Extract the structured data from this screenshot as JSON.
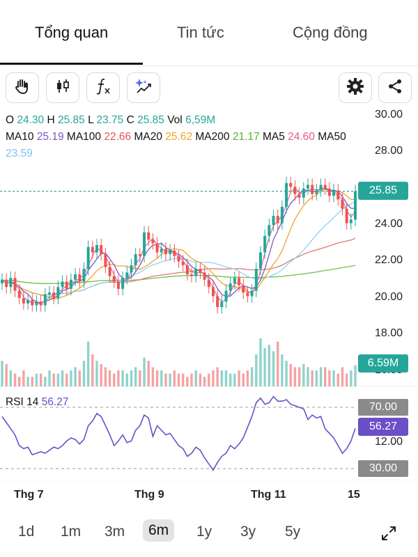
{
  "tabs": [
    {
      "label": "Tổng quan",
      "active": true
    },
    {
      "label": "Tin tức",
      "active": false
    },
    {
      "label": "Cộng đồng",
      "active": false
    }
  ],
  "toolbar": {
    "left_icons": [
      "hand-icon",
      "candlestick-icon",
      "function-icon",
      "ai-sparkle-chart-icon"
    ],
    "right_icons": [
      "gear-icon",
      "share-icon"
    ]
  },
  "ohlc": {
    "o_label": "O",
    "o_value": "24.30",
    "h_label": "H",
    "h_value": "25.85",
    "l_label": "L",
    "l_value": "23.75",
    "c_label": "C",
    "c_value": "25.85",
    "vol_label": "Vol",
    "vol_value": "6,59M"
  },
  "ma": {
    "ma10_label": "MA10",
    "ma10_value": "25.19",
    "ma100_label": "MA100",
    "ma100_value": "22.66",
    "ma20_label": "MA20",
    "ma20_value": "25.62",
    "ma200_label": "MA200",
    "ma200_value": "21.17",
    "ma5_label": "MA5",
    "ma5_value": "24.60",
    "ma50_label": "MA50",
    "ma50_value": "23.59"
  },
  "price_axis": [
    "30.00",
    "28.00",
    "24.00",
    "22.00",
    "20.00",
    "18.00",
    "16.00"
  ],
  "last_price_tag": "25.85",
  "volume_tag": "6.59M",
  "rsi": {
    "label": "RSI 14",
    "value": "56.27",
    "levels": [
      "70.00",
      "30.00"
    ],
    "axis_mid": "12.00",
    "value_tag": "56.27"
  },
  "time_axis": [
    "Thg 7",
    "Thg 9",
    "Thg 11",
    "15"
  ],
  "ranges": [
    "1d",
    "1m",
    "3m",
    "6m",
    "1y",
    "3y",
    "5y"
  ],
  "selected_range": "6m",
  "colors": {
    "up": "#26a69a",
    "down": "#ef5350",
    "ma10": "#7e57c2",
    "ma100": "#e57373",
    "ma20": "#f0a22e",
    "ma200": "#6cc04a",
    "ma5": "#e35d8a",
    "ma50": "#90d1f2",
    "rsi": "#6a4fc7"
  },
  "chart_data": {
    "type": "candlestick",
    "price_range": [
      16,
      30
    ],
    "last_close": 25.85,
    "closes": [
      21.0,
      20.6,
      21.1,
      20.4,
      20.0,
      19.7,
      19.9,
      19.6,
      19.8,
      19.6,
      20.2,
      20.3,
      20.0,
      20.6,
      20.9,
      20.5,
      21.0,
      21.3,
      20.9,
      21.6,
      22.8,
      22.5,
      22.9,
      22.4,
      21.7,
      21.2,
      20.9,
      20.5,
      21.1,
      21.4,
      21.8,
      22.4,
      22.3,
      23.6,
      23.2,
      23.0,
      22.5,
      22.7,
      22.4,
      22.6,
      22.3,
      22.0,
      21.8,
      21.3,
      21.2,
      21.6,
      21.4,
      21.0,
      20.6,
      20.1,
      19.5,
      19.8,
      20.4,
      20.8,
      21.1,
      20.7,
      20.3,
      20.1,
      20.4,
      21.6,
      22.5,
      23.4,
      24.0,
      24.5,
      24.1,
      25.0,
      26.3,
      26.1,
      25.7,
      25.5,
      26.0,
      26.2,
      25.7,
      25.9,
      26.2,
      26.0,
      25.6,
      25.9,
      25.4,
      24.9,
      24.1,
      24.3,
      25.85
    ],
    "rsi_values": [
      64,
      60,
      56,
      52,
      45,
      43,
      44,
      39,
      40,
      41,
      40,
      42,
      44,
      43,
      45,
      48,
      50,
      49,
      46,
      49,
      58,
      61,
      66,
      64,
      58,
      52,
      45,
      48,
      52,
      47,
      48,
      55,
      58,
      65,
      63,
      51,
      58,
      55,
      52,
      53,
      49,
      45,
      43,
      38,
      40,
      44,
      42,
      37,
      33,
      29,
      34,
      38,
      40,
      45,
      43,
      46,
      50,
      57,
      64,
      73,
      76,
      72,
      73,
      77,
      74,
      74,
      75,
      72,
      71,
      70,
      69,
      62,
      65,
      63,
      64,
      56,
      53,
      50,
      45,
      40,
      43,
      48,
      56.27
    ],
    "volumes": [
      8,
      7,
      5,
      4,
      3,
      5,
      3,
      3,
      4,
      4,
      3,
      5,
      4,
      4,
      5,
      4,
      5,
      6,
      5,
      8,
      14,
      10,
      8,
      7,
      6,
      5,
      4,
      5,
      5,
      4,
      5,
      6,
      5,
      9,
      8,
      6,
      5,
      5,
      4,
      4,
      5,
      4,
      4,
      3,
      4,
      5,
      4,
      3,
      4,
      5,
      6,
      5,
      5,
      4,
      4,
      5,
      4,
      5,
      6,
      10,
      15,
      12,
      13,
      11,
      14,
      10,
      8,
      7,
      6,
      6,
      7,
      6,
      5,
      5,
      6,
      6,
      5,
      5,
      4,
      6,
      4,
      5,
      6.59
    ]
  }
}
